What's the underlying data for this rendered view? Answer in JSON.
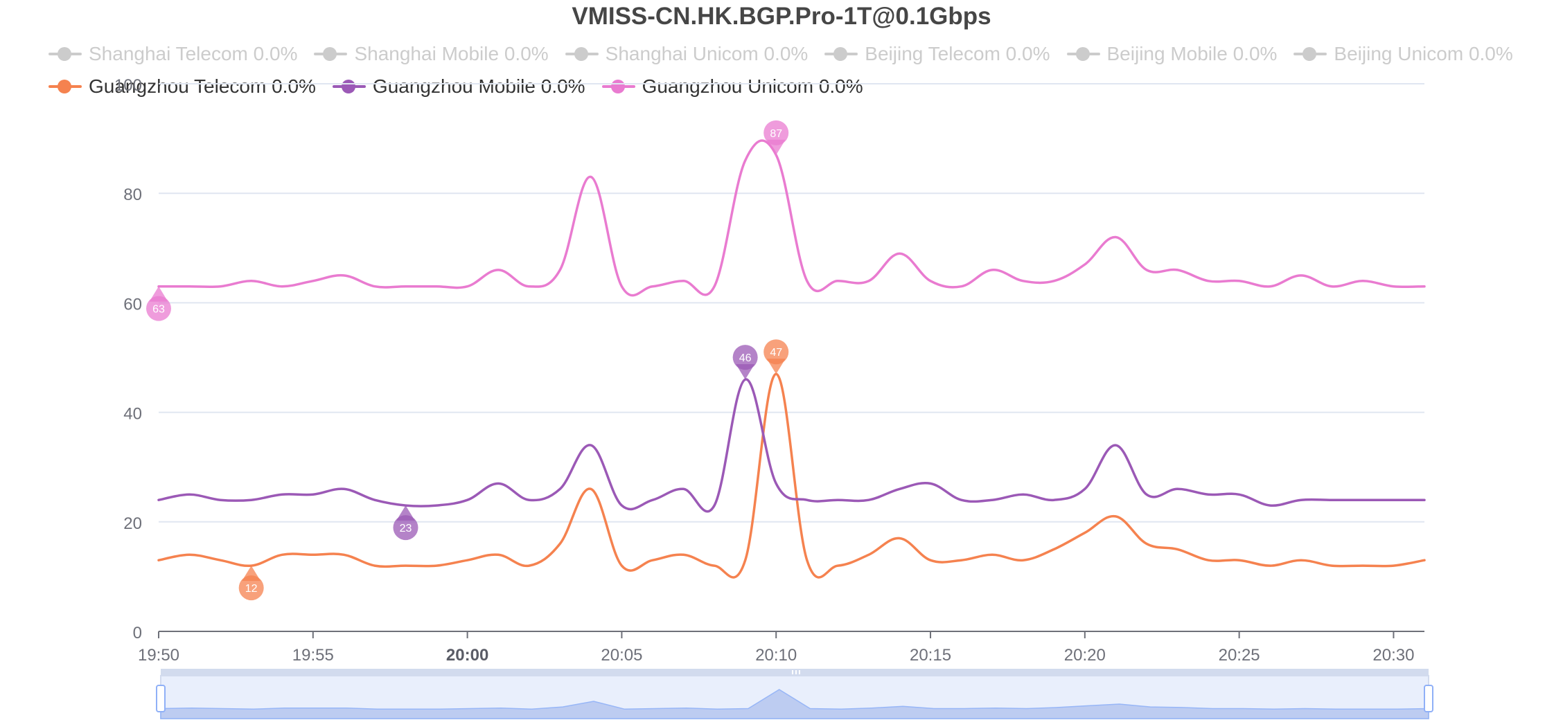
{
  "chart_data": {
    "type": "line",
    "title": "VMISS-CN.HK.BGP.Pro-1T@0.1Gbps",
    "xlabel": "",
    "ylabel": "",
    "ylim": [
      0,
      100
    ],
    "yticks": [
      0,
      20,
      40,
      60,
      80,
      100
    ],
    "xlim": [
      "19:50",
      "20:31"
    ],
    "xtick_labels": [
      "19:50",
      "19:55",
      "20:00",
      "20:05",
      "20:10",
      "20:15",
      "20:20",
      "20:25",
      "20:30"
    ],
    "xtick_minutes": [
      0,
      5,
      10,
      15,
      20,
      25,
      30,
      35,
      40
    ],
    "bold_xtick": "20:00",
    "grid": true,
    "legend_position": "top",
    "data_zoom_slider": true,
    "x_minutes": [
      0,
      1,
      2,
      3,
      4,
      5,
      6,
      7,
      8,
      9,
      10,
      11,
      12,
      13,
      14,
      15,
      16,
      17,
      18,
      19,
      20,
      21,
      22,
      23,
      24,
      25,
      26,
      27,
      28,
      29,
      30,
      31,
      32,
      33,
      34,
      35,
      36,
      37,
      38,
      39,
      40,
      41
    ],
    "series": [
      {
        "name": "Shanghai Telecom 0.0%",
        "color": "#cccccc",
        "visible": false,
        "values": []
      },
      {
        "name": "Shanghai Mobile 0.0%",
        "color": "#cccccc",
        "visible": false,
        "values": []
      },
      {
        "name": "Shanghai Unicom 0.0%",
        "color": "#cccccc",
        "visible": false,
        "values": []
      },
      {
        "name": "Beijing Telecom 0.0%",
        "color": "#cccccc",
        "visible": false,
        "values": []
      },
      {
        "name": "Beijing Mobile 0.0%",
        "color": "#cccccc",
        "visible": false,
        "values": []
      },
      {
        "name": "Beijing Unicom 0.0%",
        "color": "#cccccc",
        "visible": false,
        "values": []
      },
      {
        "name": "Guangzhou Telecom 0.0%",
        "color": "#f5824f",
        "visible": true,
        "values": [
          13,
          14,
          13,
          12,
          14,
          14,
          14,
          12,
          12,
          12,
          13,
          14,
          12,
          16,
          26,
          12,
          13,
          14,
          12,
          13,
          47,
          13,
          12,
          14,
          17,
          13,
          13,
          14,
          13,
          15,
          18,
          21,
          16,
          15,
          13,
          13,
          12,
          13,
          12,
          12,
          12,
          13
        ],
        "max_label": "47",
        "min_label": "12"
      },
      {
        "name": "Guangzhou Mobile 0.0%",
        "color": "#9b59b6",
        "visible": true,
        "values": [
          24,
          25,
          24,
          24,
          25,
          25,
          26,
          24,
          23,
          23,
          24,
          27,
          24,
          26,
          34,
          23,
          24,
          26,
          23,
          46,
          27,
          24,
          24,
          24,
          26,
          27,
          24,
          24,
          25,
          24,
          26,
          34,
          25,
          26,
          25,
          25,
          23,
          24,
          24,
          24,
          24,
          24
        ],
        "max_label": "46",
        "min_label": "23"
      },
      {
        "name": "Guangzhou Unicom 0.0%",
        "color": "#e97bd0",
        "visible": true,
        "values": [
          63,
          63,
          63,
          64,
          63,
          64,
          65,
          63,
          63,
          63,
          63,
          66,
          63,
          66,
          83,
          63,
          63,
          64,
          63,
          86,
          87,
          64,
          64,
          64,
          69,
          64,
          63,
          66,
          64,
          64,
          67,
          72,
          66,
          66,
          64,
          64,
          63,
          65,
          63,
          64,
          63,
          63
        ],
        "max_label": "87",
        "min_label": "63"
      }
    ],
    "slider_overview_values": [
      13,
      14,
      13,
      12,
      14,
      14,
      14,
      12,
      12,
      12,
      13,
      14,
      12,
      16,
      26,
      12,
      13,
      14,
      12,
      13,
      47,
      13,
      12,
      14,
      17,
      13,
      13,
      14,
      13,
      15,
      18,
      21,
      16,
      15,
      13,
      13,
      12,
      13,
      12,
      12,
      12,
      13
    ]
  }
}
